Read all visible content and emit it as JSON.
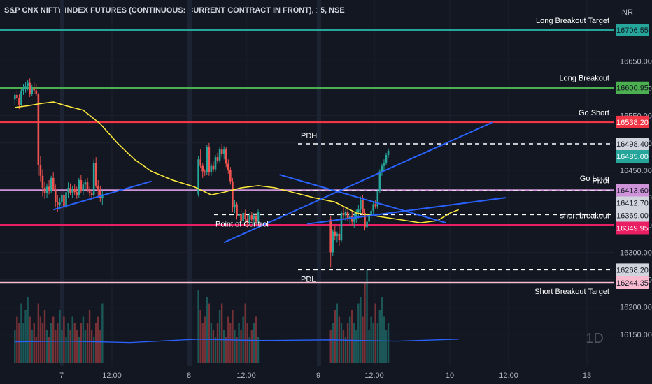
{
  "header": {
    "title": "S&P CNX NIFTY INDEX FUTURES (CONTINUOUS: CURRENT CONTRACT IN FRONT), 15, NSE"
  },
  "axis": {
    "currency": "INR",
    "interval_label": "1D",
    "y_ticks": [
      "16650.00",
      "16600.00",
      "16550.00",
      "16500.00",
      "16450.00",
      "16400.00",
      "16350.00",
      "16300.00",
      "16250.00",
      "16200.00",
      "16150.00"
    ],
    "x_ticks": [
      "7",
      "12:00",
      "8",
      "12:00",
      "9",
      "12:00",
      "10",
      "12:00",
      "13"
    ]
  },
  "levels": [
    {
      "label": "Long Breakout Target",
      "value": "16706.55",
      "color": "#26a69a",
      "text_color": "#131722"
    },
    {
      "label": "Long Breakout",
      "value": "16600.95",
      "color": "#4caf50",
      "text_color": "#131722"
    },
    {
      "label": "Go Short",
      "value": "16538.20",
      "color": "#f23645",
      "text_color": "#ffffff"
    },
    {
      "label": "PDH",
      "value": "16498.40",
      "color": "#d1d4dc",
      "text_color": "#131722"
    },
    {
      "label": "",
      "value": "16485.00",
      "color": "#26a69a",
      "text_color": "#ffffff"
    },
    {
      "label": "Pivot",
      "value": "16413.60",
      "color": "#ce93d8",
      "text_color": "#131722"
    },
    {
      "label": "Go Long",
      "value": "16412.70",
      "color": "#d1d4dc",
      "text_color": "#131722"
    },
    {
      "label": "Point of Control",
      "value": "16369.00",
      "color": "#d1d4dc",
      "text_color": "#131722"
    },
    {
      "label": "short breakout",
      "value": "16349.95",
      "color": "#e91e63",
      "text_color": "#ffffff"
    },
    {
      "label": "PDL",
      "value": "16268.20",
      "color": "#d1d4dc",
      "text_color": "#131722"
    },
    {
      "label": "Short  Breakout Target",
      "value": "16244.35",
      "color": "#f8bbd0",
      "text_color": "#131722"
    }
  ],
  "chart_data": {
    "type": "candlestick",
    "symbol": "NIFTY1!",
    "ylim": [
      16130,
      16730
    ],
    "price_scale": "INR",
    "dates": [
      "7",
      "8",
      "9"
    ],
    "sessions": [
      {
        "date": "7",
        "start": 6,
        "candles": [
          [
            16580,
            16592,
            16570,
            16588
          ],
          [
            16588,
            16596,
            16576,
            16582
          ],
          [
            16582,
            16590,
            16562,
            16570
          ],
          [
            16570,
            16598,
            16566,
            16596
          ],
          [
            16596,
            16608,
            16588,
            16600
          ],
          [
            16600,
            16612,
            16592,
            16604
          ],
          [
            16604,
            16616,
            16596,
            16610
          ],
          [
            16610,
            16618,
            16584,
            16590
          ],
          [
            16590,
            16606,
            16586,
            16600
          ],
          [
            16600,
            16610,
            16590,
            16596
          ],
          [
            16596,
            16608,
            16586,
            16590
          ],
          [
            16590,
            16592,
            16440,
            16460
          ],
          [
            16460,
            16476,
            16430,
            16440
          ],
          [
            16440,
            16452,
            16402,
            16418
          ],
          [
            16418,
            16428,
            16398,
            16408
          ],
          [
            16408,
            16426,
            16400,
            16420
          ],
          [
            16420,
            16432,
            16406,
            16412
          ],
          [
            16412,
            16440,
            16408,
            16436
          ],
          [
            16436,
            16446,
            16412,
            16416
          ],
          [
            16416,
            16424,
            16382,
            16392
          ],
          [
            16392,
            16404,
            16374,
            16386
          ],
          [
            16386,
            16400,
            16378,
            16392
          ],
          [
            16392,
            16410,
            16382,
            16404
          ],
          [
            16404,
            16412,
            16376,
            16382
          ],
          [
            16382,
            16414,
            16378,
            16410
          ],
          [
            16410,
            16428,
            16400,
            16418
          ],
          [
            16418,
            16426,
            16404,
            16408
          ],
          [
            16408,
            16422,
            16400,
            16416
          ],
          [
            16416,
            16424,
            16404,
            16410
          ],
          [
            16410,
            16420,
            16398,
            16404
          ],
          [
            16404,
            16436,
            16400,
            16432
          ],
          [
            16432,
            16442,
            16408,
            16412
          ],
          [
            16412,
            16430,
            16404,
            16424
          ],
          [
            16424,
            16434,
            16416,
            16428
          ],
          [
            16428,
            16436,
            16410,
            16414
          ],
          [
            16414,
            16420,
            16402,
            16408
          ],
          [
            16408,
            16416,
            16396,
            16404
          ],
          [
            16404,
            16470,
            16398,
            16464
          ],
          [
            16464,
            16474,
            16418,
            16422
          ],
          [
            16422,
            16432,
            16400,
            16412
          ],
          [
            16412,
            16422,
            16392,
            16400
          ],
          [
            16400,
            16412,
            16386,
            16406
          ]
        ]
      },
      {
        "date": "8",
        "start": 92,
        "candles": [
          [
            16406,
            16476,
            16402,
            16470
          ],
          [
            16470,
            16488,
            16454,
            16458
          ],
          [
            16458,
            16464,
            16436,
            16448
          ],
          [
            16448,
            16452,
            16440,
            16446
          ],
          [
            16446,
            16496,
            16442,
            16492
          ],
          [
            16492,
            16500,
            16440,
            16446
          ],
          [
            16446,
            16462,
            16440,
            16458
          ],
          [
            16458,
            16466,
            16446,
            16452
          ],
          [
            16452,
            16478,
            16448,
            16474
          ],
          [
            16474,
            16482,
            16462,
            16468
          ],
          [
            16468,
            16492,
            16464,
            16488
          ],
          [
            16488,
            16498,
            16474,
            16480
          ],
          [
            16480,
            16494,
            16470,
            16488
          ],
          [
            16488,
            16492,
            16456,
            16462
          ],
          [
            16462,
            16470,
            16444,
            16450
          ],
          [
            16450,
            16456,
            16424,
            16430
          ],
          [
            16430,
            16436,
            16374,
            16382
          ],
          [
            16382,
            16396,
            16372,
            16388
          ],
          [
            16388,
            16392,
            16360,
            16366
          ],
          [
            16366,
            16378,
            16356,
            16370
          ],
          [
            16370,
            16378,
            16354,
            16358
          ],
          [
            16358,
            16376,
            16352,
            16372
          ],
          [
            16372,
            16378,
            16356,
            16362
          ],
          [
            16362,
            16368,
            16346,
            16354
          ],
          [
            16354,
            16372,
            16350,
            16368
          ],
          [
            16368,
            16374,
            16356,
            16360
          ],
          [
            16360,
            16372,
            16350,
            16366
          ],
          [
            16366,
            16372,
            16352,
            16356
          ],
          [
            16356,
            16378,
            16352,
            16374
          ]
        ]
      },
      {
        "date": "9",
        "start": 154,
        "candles": [
          [
            16360,
            16366,
            16272,
            16300
          ],
          [
            16300,
            16342,
            16294,
            16338
          ],
          [
            16338,
            16348,
            16322,
            16330
          ],
          [
            16330,
            16338,
            16318,
            16334
          ],
          [
            16334,
            16350,
            16312,
            16322
          ],
          [
            16322,
            16376,
            16318,
            16372
          ],
          [
            16372,
            16382,
            16360,
            16368
          ],
          [
            16368,
            16380,
            16358,
            16374
          ],
          [
            16374,
            16382,
            16356,
            16362
          ],
          [
            16362,
            16372,
            16348,
            16366
          ],
          [
            16366,
            16374,
            16350,
            16356
          ],
          [
            16356,
            16372,
            16344,
            16360
          ],
          [
            16360,
            16378,
            16354,
            16374
          ],
          [
            16374,
            16386,
            16362,
            16378
          ],
          [
            16378,
            16402,
            16370,
            16396
          ],
          [
            16396,
            16404,
            16368,
            16372
          ],
          [
            16372,
            16380,
            16340,
            16346
          ],
          [
            16346,
            16362,
            16336,
            16356
          ],
          [
            16356,
            16372,
            16350,
            16368
          ],
          [
            16368,
            16380,
            16360,
            16376
          ],
          [
            16376,
            16392,
            16370,
            16388
          ],
          [
            16388,
            16396,
            16380,
            16384
          ],
          [
            16384,
            16416,
            16380,
            16412
          ],
          [
            16412,
            16452,
            16408,
            16448
          ],
          [
            16448,
            16462,
            16440,
            16458
          ],
          [
            16458,
            16470,
            16450,
            16464
          ],
          [
            16464,
            16482,
            16460,
            16478
          ],
          [
            16478,
            16490,
            16472,
            16486
          ]
        ]
      }
    ],
    "volume": [
      5,
      7,
      6,
      9,
      6,
      8,
      10,
      7,
      5,
      6,
      4,
      9,
      7,
      6,
      8,
      5,
      4,
      6,
      7,
      5,
      6,
      8,
      5,
      7,
      4,
      6,
      5,
      7,
      6,
      5,
      4,
      6,
      7,
      5,
      6,
      8,
      5,
      4,
      6,
      7,
      5,
      9,
      11,
      8,
      6,
      7,
      10,
      9,
      6,
      5,
      4,
      6,
      8,
      9,
      5,
      4,
      7,
      6,
      8,
      5,
      4,
      6,
      5,
      7,
      9,
      6,
      4,
      5,
      6,
      7,
      4,
      5,
      6,
      8,
      9,
      7,
      6,
      5,
      4,
      6,
      7,
      8,
      6,
      5,
      9,
      10,
      7,
      12,
      14
    ],
    "ma_yellow": [
      [
        6,
        16565
      ],
      [
        12,
        16568
      ],
      [
        18,
        16572
      ],
      [
        24,
        16575
      ],
      [
        30,
        16568
      ],
      [
        38,
        16560
      ],
      [
        46,
        16535
      ],
      [
        54,
        16500
      ],
      [
        62,
        16470
      ],
      [
        70,
        16448
      ],
      [
        80,
        16432
      ],
      [
        90,
        16420
      ],
      [
        98,
        16405
      ],
      [
        104,
        16410
      ],
      [
        112,
        16418
      ],
      [
        120,
        16422
      ],
      [
        128,
        16418
      ],
      [
        136,
        16410
      ],
      [
        146,
        16400
      ],
      [
        156,
        16392
      ],
      [
        166,
        16372
      ],
      [
        176,
        16366
      ],
      [
        186,
        16360
      ],
      [
        196,
        16354
      ],
      [
        204,
        16358
      ],
      [
        210,
        16372
      ],
      [
        214,
        16378
      ]
    ],
    "ma_blue_volume": [
      [
        6,
        3.2
      ],
      [
        30,
        3.3
      ],
      [
        60,
        3.1
      ],
      [
        92,
        3.6
      ],
      [
        120,
        3.4
      ],
      [
        154,
        3.5
      ],
      [
        185,
        3.3
      ],
      [
        214,
        3.6
      ]
    ],
    "trendlines": [
      {
        "color": "#2962ff",
        "from": [
          24,
          16378
        ],
        "to": [
          70,
          16430
        ]
      },
      {
        "color": "#2962ff",
        "from": [
          104,
          16318
        ],
        "to": [
          230,
          16538
        ]
      },
      {
        "color": "#2962ff",
        "from": [
          130,
          16442
        ],
        "to": [
          208,
          16354
        ]
      },
      {
        "color": "#2962ff",
        "from": [
          143,
          16352
        ],
        "to": [
          236,
          16400
        ]
      }
    ]
  }
}
